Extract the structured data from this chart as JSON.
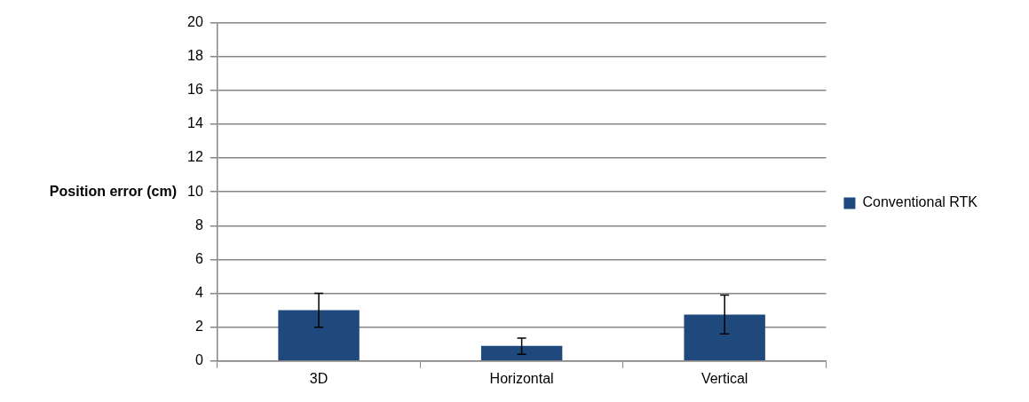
{
  "chart_data": {
    "type": "bar",
    "categories": [
      "3D",
      "Horizontal",
      "Vertical"
    ],
    "ylabel": "Position error (cm)",
    "series": [
      {
        "name": "Conventional RTK",
        "color": "#1f497d",
        "values": [
          3.0,
          0.9,
          2.75
        ],
        "errors": [
          [
            2.0,
            4.0
          ],
          [
            0.4,
            1.35
          ],
          [
            1.6,
            3.9
          ]
        ]
      }
    ],
    "ylim": [
      0,
      20
    ],
    "yticks": [
      0,
      2,
      4,
      6,
      8,
      10,
      12,
      14,
      16,
      18,
      20
    ],
    "grid": "y",
    "legend": "right"
  }
}
